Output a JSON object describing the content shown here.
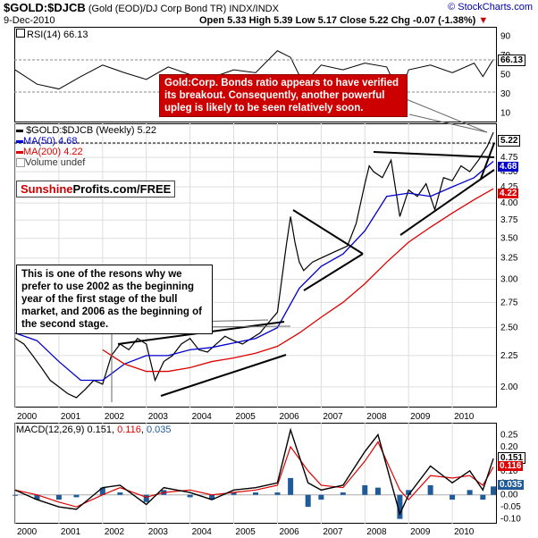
{
  "header": {
    "symbol": "$GOLD:$DJCB",
    "description": "(Gold (EOD)/DJ Corp Bond TR)",
    "exchange": "INDX/INDX",
    "copyright": "© StockCharts.com",
    "date": "9-Dec-2010",
    "quote": "Open 5.33  High 5.39  Low 5.17  Close 5.22  Chg -0.07 (-1.38%)",
    "chg_marker": "▼"
  },
  "annotations": {
    "red_note": "Gold:Corp. Bonds ratio appears to have verified its breakout. Consequently, another powerful upleg is likely to be seen relatively soon.",
    "black_note": "This is one of the resons why we prefer to use 2002 as the beginning year of the first stage of the bull market, and 2006 as the beginning of the second stage.",
    "logo_a": "Sunshine",
    "logo_b": "Profits.com/FREE"
  },
  "colors": {
    "price": "#000000",
    "ma50": "#0000cc",
    "ma200": "#dd0000",
    "macd": "#000000",
    "signal": "#dd0000",
    "hist": "#1f5a99",
    "note_bg": "#cc0000"
  },
  "chart_data": [
    {
      "type": "line",
      "panel": "rsi",
      "title": "RSI(14) 66.13",
      "last_label": "66.13",
      "ylim": [
        0,
        100
      ],
      "yticks": [
        "90",
        "70",
        "50",
        "30",
        "10"
      ],
      "series": [
        {
          "name": "RSI(14)",
          "x": [
            2000.0,
            2000.5,
            2001.0,
            2001.5,
            2002.0,
            2002.5,
            2003.0,
            2003.5,
            2004.0,
            2004.5,
            2005.0,
            2005.5,
            2006.0,
            2006.3,
            2006.6,
            2007.0,
            2007.5,
            2008.0,
            2008.5,
            2008.8,
            2009.0,
            2009.5,
            2010.0,
            2010.5,
            2010.7,
            2010.94
          ],
          "values": [
            55,
            40,
            35,
            48,
            60,
            52,
            45,
            58,
            50,
            47,
            55,
            52,
            75,
            68,
            40,
            60,
            55,
            62,
            58,
            28,
            55,
            60,
            52,
            62,
            48,
            66
          ]
        }
      ]
    },
    {
      "type": "line",
      "panel": "price",
      "title": "$GOLD:$DJCB (Weekly) 5.22",
      "legend": [
        "$GOLD:$DJCB (Weekly) 5.22",
        "MA(50) 4.68",
        "MA(200) 4.22",
        "Volume undef"
      ],
      "scale": "log",
      "ylim": [
        1.85,
        5.4
      ],
      "yticks": [
        "5.00",
        "4.75",
        "4.50",
        "4.25",
        "4.00",
        "3.75",
        "3.50",
        "3.25",
        "3.00",
        "2.75",
        "2.50",
        "2.25",
        "2.00"
      ],
      "last_labels": {
        "close": "5.22",
        "ma50": "4.68",
        "ma200": "4.22"
      },
      "x_ticks": [
        "2000",
        "2001",
        "2002",
        "2003",
        "2004",
        "2005",
        "2006",
        "2007",
        "2008",
        "2009",
        "2010"
      ],
      "series": [
        {
          "name": "$GOLD:$DJCB",
          "x": [
            2000.0,
            2000.2,
            2000.4,
            2000.6,
            2000.8,
            2001.0,
            2001.2,
            2001.4,
            2001.6,
            2001.8,
            2002.0,
            2002.2,
            2002.4,
            2002.6,
            2002.8,
            2003.0,
            2003.2,
            2003.4,
            2003.6,
            2003.8,
            2004.0,
            2004.2,
            2004.4,
            2004.6,
            2004.8,
            2005.0,
            2005.2,
            2005.4,
            2005.6,
            2005.8,
            2006.0,
            2006.2,
            2006.3,
            2006.4,
            2006.5,
            2006.6,
            2006.8,
            2007.0,
            2007.2,
            2007.4,
            2007.6,
            2007.8,
            2008.0,
            2008.1,
            2008.2,
            2008.4,
            2008.6,
            2008.8,
            2009.0,
            2009.2,
            2009.4,
            2009.6,
            2009.8,
            2010.0,
            2010.2,
            2010.4,
            2010.6,
            2010.8,
            2010.94
          ],
          "values": [
            2.4,
            2.35,
            2.25,
            2.15,
            2.05,
            2.0,
            1.95,
            1.92,
            1.98,
            2.05,
            2.02,
            2.25,
            2.35,
            2.3,
            2.4,
            2.35,
            2.05,
            2.2,
            2.25,
            2.35,
            2.4,
            2.3,
            2.28,
            2.35,
            2.42,
            2.38,
            2.35,
            2.4,
            2.45,
            2.55,
            2.65,
            3.4,
            3.8,
            3.45,
            3.2,
            3.1,
            3.2,
            3.25,
            3.3,
            3.35,
            3.4,
            3.7,
            4.3,
            4.6,
            4.5,
            4.4,
            4.7,
            3.8,
            4.2,
            4.1,
            4.3,
            3.9,
            4.4,
            4.35,
            4.6,
            4.5,
            4.7,
            4.95,
            5.22
          ]
        },
        {
          "name": "MA(50)",
          "x": [
            2000.0,
            2000.5,
            2001.0,
            2001.5,
            2002.0,
            2002.5,
            2003.0,
            2003.5,
            2004.0,
            2004.5,
            2005.0,
            2005.5,
            2006.0,
            2006.5,
            2007.0,
            2007.5,
            2008.0,
            2008.5,
            2009.0,
            2009.5,
            2010.0,
            2010.5,
            2010.94
          ],
          "values": [
            2.45,
            2.38,
            2.2,
            2.05,
            2.05,
            2.18,
            2.25,
            2.25,
            2.3,
            2.32,
            2.36,
            2.4,
            2.5,
            2.9,
            3.15,
            3.3,
            3.6,
            4.1,
            4.15,
            4.1,
            4.25,
            4.4,
            4.68
          ]
        },
        {
          "name": "MA(200)",
          "x": [
            2002.0,
            2002.5,
            2003.0,
            2003.5,
            2004.0,
            2004.5,
            2005.0,
            2005.5,
            2006.0,
            2006.5,
            2007.0,
            2007.5,
            2008.0,
            2008.5,
            2009.0,
            2009.5,
            2010.0,
            2010.5,
            2010.94
          ],
          "values": [
            2.3,
            2.18,
            2.12,
            2.12,
            2.15,
            2.2,
            2.23,
            2.27,
            2.33,
            2.45,
            2.6,
            2.75,
            2.95,
            3.2,
            3.45,
            3.65,
            3.85,
            4.05,
            4.22
          ]
        }
      ]
    },
    {
      "type": "line",
      "panel": "macd",
      "title": "MACD(12,26,9) 0.151, 0.116, 0.035",
      "legend_parts": [
        "MACD(12,26,9)",
        "0.151",
        "0.116",
        "0.035"
      ],
      "ylim": [
        -0.12,
        0.3
      ],
      "yticks": [
        "0.25",
        "0.20",
        "0.15",
        "0.10",
        "0.05",
        "0.00",
        "-0.05",
        "-0.10"
      ],
      "last_labels": {
        "macd": "0.151",
        "signal": "0.116",
        "hist": "0.035"
      },
      "x_ticks": [
        "2000",
        "2001",
        "2002",
        "2003",
        "2004",
        "2005",
        "2006",
        "2007",
        "2008",
        "2009",
        "2010"
      ],
      "series": [
        {
          "name": "MACD",
          "x": [
            2000.0,
            2000.5,
            2001.0,
            2001.4,
            2002.0,
            2002.4,
            2003.0,
            2003.4,
            2004.0,
            2004.5,
            2005.0,
            2005.5,
            2006.0,
            2006.3,
            2006.7,
            2007.0,
            2007.5,
            2008.0,
            2008.3,
            2008.8,
            2009.0,
            2009.5,
            2010.0,
            2010.4,
            2010.7,
            2010.94
          ],
          "values": [
            0.02,
            -0.02,
            -0.05,
            -0.06,
            0.03,
            0.04,
            -0.04,
            0.03,
            0.01,
            -0.02,
            0.02,
            0.03,
            0.05,
            0.27,
            0.05,
            0.02,
            0.04,
            0.18,
            0.25,
            -0.08,
            0.0,
            0.12,
            0.05,
            0.1,
            0.02,
            0.151
          ]
        },
        {
          "name": "Signal",
          "x": [
            2000.0,
            2000.5,
            2001.0,
            2001.4,
            2002.0,
            2002.4,
            2003.0,
            2003.4,
            2004.0,
            2004.5,
            2005.0,
            2005.5,
            2006.0,
            2006.3,
            2006.7,
            2007.0,
            2007.5,
            2008.0,
            2008.3,
            2008.8,
            2009.0,
            2009.5,
            2010.0,
            2010.4,
            2010.7,
            2010.94
          ],
          "values": [
            0.02,
            0.0,
            -0.03,
            -0.05,
            0.0,
            0.03,
            -0.01,
            0.01,
            0.02,
            0.0,
            0.01,
            0.02,
            0.04,
            0.2,
            0.1,
            0.04,
            0.03,
            0.14,
            0.22,
            0.02,
            -0.02,
            0.08,
            0.07,
            0.08,
            0.04,
            0.116
          ]
        }
      ]
    }
  ]
}
